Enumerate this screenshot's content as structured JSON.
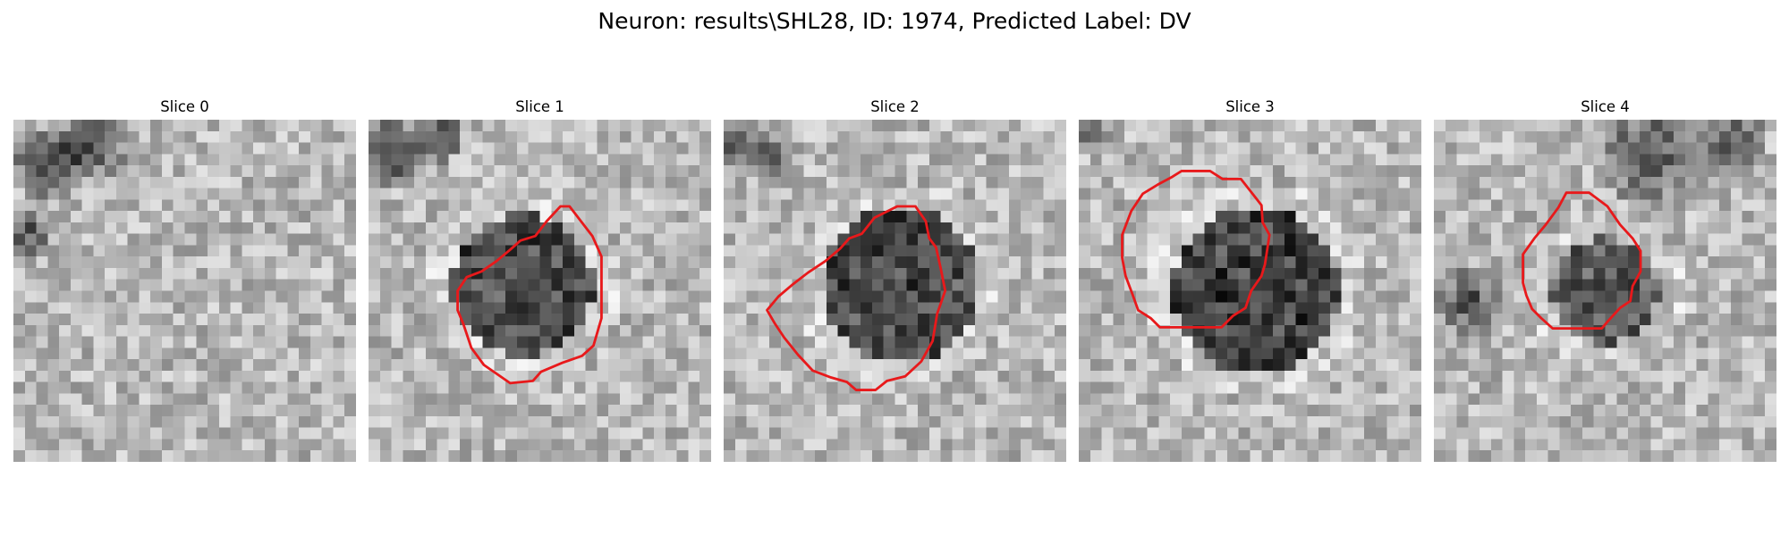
{
  "figure": {
    "title": "Neuron: results\\SHL28, ID: 1974, Predicted Label: DV"
  },
  "colors": {
    "contour": "#e8191b",
    "background": "#ffffff"
  },
  "image_grid": {
    "rows": 30,
    "cols": 30,
    "colormap": "gray"
  },
  "panels": [
    {
      "title": "Slice 0",
      "has_contour": false,
      "dark_blob_level": 0.0
    },
    {
      "title": "Slice 1",
      "has_contour": true,
      "dark_blob_level": 0.8
    },
    {
      "title": "Slice 2",
      "has_contour": true,
      "dark_blob_level": 0.8
    },
    {
      "title": "Slice 3",
      "has_contour": true,
      "dark_blob_level": 0.9
    },
    {
      "title": "Slice 4",
      "has_contour": true,
      "dark_blob_level": 0.7
    }
  ]
}
